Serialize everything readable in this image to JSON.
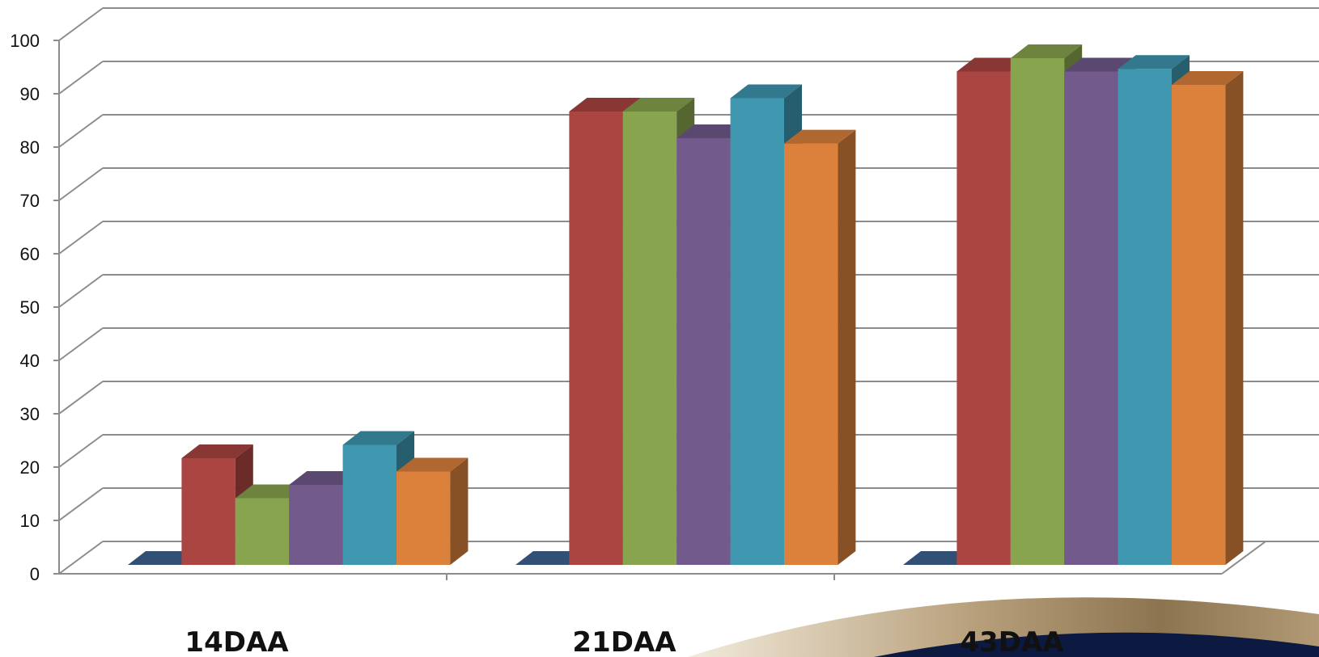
{
  "chart_data": {
    "type": "bar",
    "style": "3d-clustered-column",
    "title": "",
    "xlabel": "",
    "ylabel": "",
    "categories": [
      "14DAA",
      "21DAA",
      "43DAA"
    ],
    "ylim": [
      0,
      100
    ],
    "yticks": [
      0,
      10,
      20,
      30,
      40,
      50,
      60,
      70,
      80,
      90,
      100
    ],
    "grid": true,
    "legend": "none",
    "series": [
      {
        "color": "#3f6494",
        "values": [
          0,
          0,
          0
        ]
      },
      {
        "color": "#ab4542",
        "values": [
          20,
          85,
          92.5
        ]
      },
      {
        "color": "#89a44e",
        "values": [
          12.5,
          85,
          95
        ]
      },
      {
        "color": "#725a8c",
        "values": [
          15,
          80,
          92.5
        ]
      },
      {
        "color": "#3f97b0",
        "values": [
          22.5,
          87.5,
          93
        ]
      },
      {
        "color": "#dc813c",
        "values": [
          17.5,
          79,
          90
        ]
      }
    ]
  }
}
